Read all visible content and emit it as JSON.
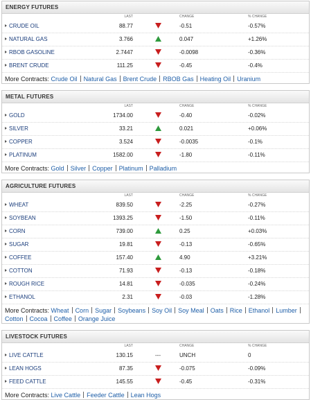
{
  "sections": [
    {
      "title": "ENERGY FUTURES",
      "columns": [
        "LAST",
        "CHANGE",
        "% CHANGE"
      ],
      "rows": [
        {
          "name": "CRUDE OIL",
          "last": "88.77",
          "trend": "down",
          "change": "-0.51",
          "pct": "-0.57%"
        },
        {
          "name": "NATURAL GAS",
          "last": "3.766",
          "trend": "up",
          "change": "0.047",
          "pct": "+1.26%"
        },
        {
          "name": "RBOB GASOLINE",
          "last": "2.7447",
          "trend": "down",
          "change": "-0.0098",
          "pct": "-0.36%"
        },
        {
          "name": "BRENT CRUDE",
          "last": "111.25",
          "trend": "down",
          "change": "-0.45",
          "pct": "-0.4%"
        }
      ],
      "more_label": "More Contracts:",
      "links": [
        "Crude Oil",
        "Natural Gas",
        "Brent Crude",
        "RBOB Gas",
        "Heating Oil",
        "Uranium"
      ]
    },
    {
      "title": "METAL FUTURES",
      "columns": [
        "LAST",
        "CHANGE",
        "% CHANGE"
      ],
      "rows": [
        {
          "name": "GOLD",
          "last": "1734.00",
          "trend": "down",
          "change": "-0.40",
          "pct": "-0.02%"
        },
        {
          "name": "SILVER",
          "last": "33.21",
          "trend": "up",
          "change": "0.021",
          "pct": "+0.06%"
        },
        {
          "name": "COPPER",
          "last": "3.524",
          "trend": "down",
          "change": "-0.0035",
          "pct": "-0.1%"
        },
        {
          "name": "PLATINUM",
          "last": "1582.00",
          "trend": "down",
          "change": "-1.80",
          "pct": "-0.11%"
        }
      ],
      "more_label": "More Contracts:",
      "links": [
        "Gold",
        "Silver",
        "Copper",
        "Platinum",
        "Palladium"
      ]
    },
    {
      "title": "AGRICULTURE FUTURES",
      "columns": [
        "LAST",
        "CHANGE",
        "% CHANGE"
      ],
      "rows": [
        {
          "name": "WHEAT",
          "last": "839.50",
          "trend": "down",
          "change": "-2.25",
          "pct": "-0.27%"
        },
        {
          "name": "SOYBEAN",
          "last": "1393.25",
          "trend": "down",
          "change": "-1.50",
          "pct": "-0.11%"
        },
        {
          "name": "CORN",
          "last": "739.00",
          "trend": "up",
          "change": "0.25",
          "pct": "+0.03%"
        },
        {
          "name": "SUGAR",
          "last": "19.81",
          "trend": "down",
          "change": "-0.13",
          "pct": "-0.65%"
        },
        {
          "name": "COFFEE",
          "last": "157.40",
          "trend": "up",
          "change": "4.90",
          "pct": "+3.21%"
        },
        {
          "name": "COTTON",
          "last": "71.93",
          "trend": "down",
          "change": "-0.13",
          "pct": "-0.18%"
        },
        {
          "name": "ROUGH RICE",
          "last": "14.81",
          "trend": "down",
          "change": "-0.035",
          "pct": "-0.24%"
        },
        {
          "name": "ETHANOL",
          "last": "2.31",
          "trend": "down",
          "change": "-0.03",
          "pct": "-1.28%"
        }
      ],
      "more_label": "More Contracts:",
      "links": [
        "Wheat",
        "Corn",
        "Sugar",
        "Soybeans",
        "Soy Oil",
        "Soy Meal",
        "Oats",
        "Rice",
        "Ethanol",
        "Lumber",
        "Cotton",
        "Cocoa",
        "Coffee",
        "Orange Juice"
      ]
    },
    {
      "title": "LIVESTOCK FUTURES",
      "columns": [
        "LAST",
        "CHANGE",
        "% CHANGE"
      ],
      "rows": [
        {
          "name": "LIVE CATTLE",
          "last": "130.15",
          "trend": "---",
          "change": "UNCH",
          "pct": "0"
        },
        {
          "name": "LEAN HOGS",
          "last": "87.35",
          "trend": "down",
          "change": "-0.075",
          "pct": "-0.09%"
        },
        {
          "name": "FEED CATTLE",
          "last": "145.55",
          "trend": "down",
          "change": "-0.45",
          "pct": "-0.31%"
        }
      ],
      "more_label": "More Contracts:",
      "links": [
        "Live Cattle",
        "Feeder Cattle",
        "Lean Hogs"
      ]
    }
  ]
}
